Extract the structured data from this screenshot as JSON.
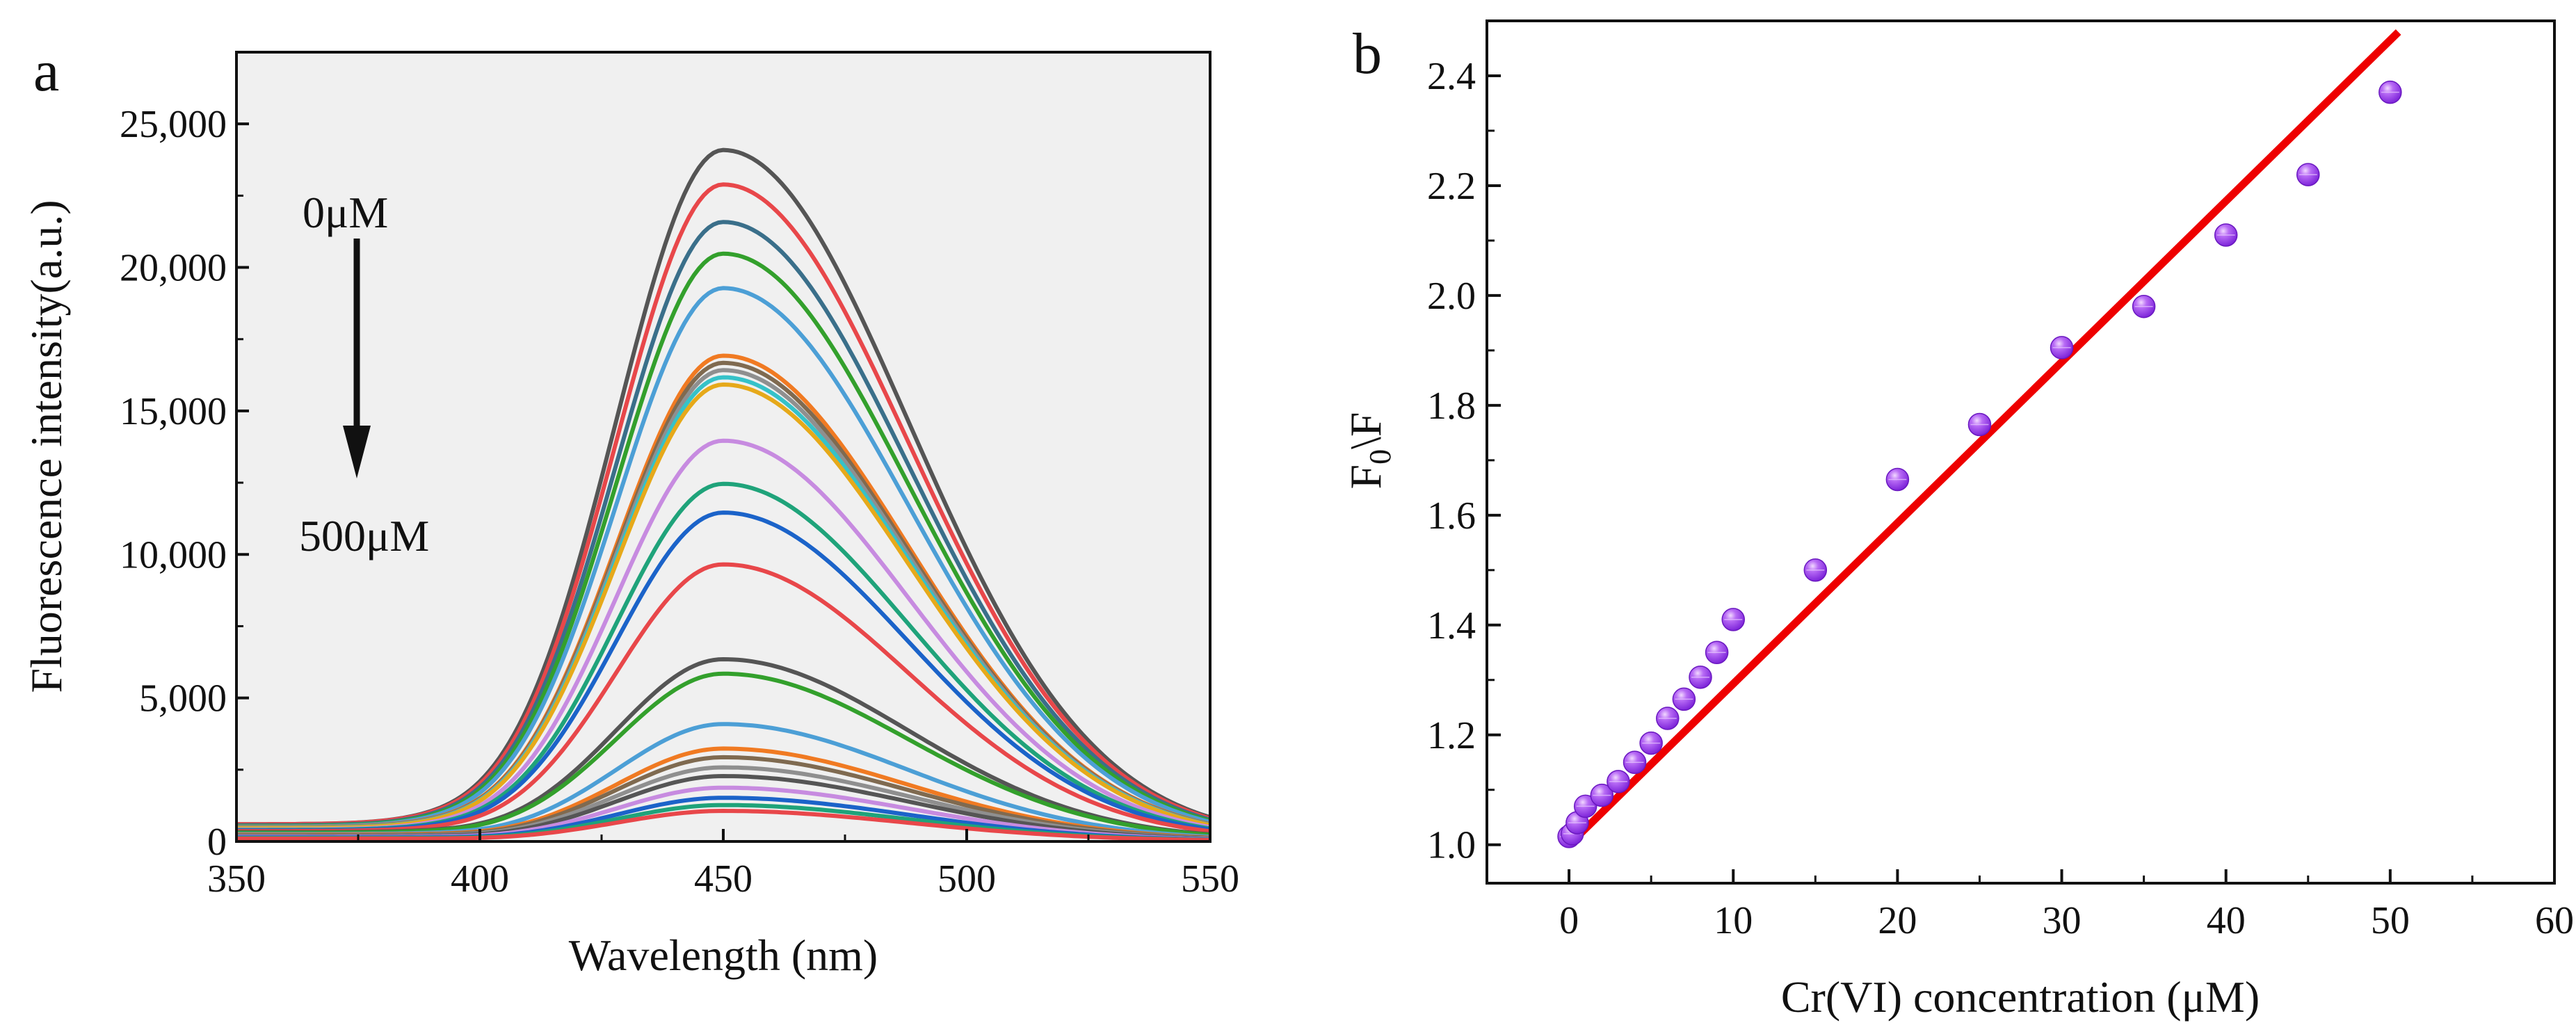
{
  "chart_data": [
    {
      "panel": "a",
      "type": "line",
      "title": "",
      "xlabel": "Wavelength (nm)",
      "ylabel": "Fluorescence intensity(a.u.)",
      "xlim": [
        350,
        550
      ],
      "ylim": [
        0,
        27500
      ],
      "x_ticks": [
        350,
        400,
        450,
        500,
        550
      ],
      "y_ticks": [
        0,
        5000,
        10000,
        15000,
        20000,
        25000
      ],
      "y_tick_labels": [
        "0",
        "5,000",
        "10,000",
        "15,000",
        "20,000",
        "25,000"
      ],
      "grid": false,
      "background": "#f0f0f0",
      "annotations": {
        "top": "0μM",
        "bottom": "500μM",
        "arrow": "down"
      },
      "spectrum_model": {
        "peak_nm": 450,
        "sigma_left_nm": 22,
        "sigma_right_nm": 38,
        "onset_nm": 397,
        "onset_width_nm": 6
      },
      "series": [
        {
          "name": "0μM",
          "peak": 24000,
          "baseline": 600,
          "color": "#555555"
        },
        {
          "name": "s2",
          "peak": 22800,
          "baseline": 600,
          "color": "#e8474a"
        },
        {
          "name": "s3",
          "peak": 21500,
          "baseline": 560,
          "color": "#3a6f8a"
        },
        {
          "name": "s4",
          "peak": 20400,
          "baseline": 540,
          "color": "#33a02c"
        },
        {
          "name": "s5",
          "peak": 19200,
          "baseline": 520,
          "color": "#4c9fd6"
        },
        {
          "name": "s6",
          "peak": 16850,
          "baseline": 500,
          "color": "#f07a22"
        },
        {
          "name": "s7",
          "peak": 16600,
          "baseline": 490,
          "color": "#7f6a50"
        },
        {
          "name": "s8",
          "peak": 16350,
          "baseline": 480,
          "color": "#8f8f8f"
        },
        {
          "name": "s9",
          "peak": 16100,
          "baseline": 470,
          "color": "#35c2c9"
        },
        {
          "name": "s10",
          "peak": 15850,
          "baseline": 460,
          "color": "#e6a91a"
        },
        {
          "name": "s11",
          "peak": 13900,
          "baseline": 420,
          "color": "#c78be0"
        },
        {
          "name": "s12",
          "peak": 12400,
          "baseline": 400,
          "color": "#1fa37a"
        },
        {
          "name": "s13",
          "peak": 11400,
          "baseline": 380,
          "color": "#1b63c9"
        },
        {
          "name": "s14",
          "peak": 9600,
          "baseline": 360,
          "color": "#e8474a"
        },
        {
          "name": "s15",
          "peak": 6300,
          "baseline": 320,
          "color": "#555555"
        },
        {
          "name": "s16",
          "peak": 5800,
          "baseline": 300,
          "color": "#33a02c"
        },
        {
          "name": "s17",
          "peak": 4050,
          "baseline": 260,
          "color": "#4c9fd6"
        },
        {
          "name": "s18",
          "peak": 3200,
          "baseline": 240,
          "color": "#f07a22"
        },
        {
          "name": "s19",
          "peak": 2900,
          "baseline": 220,
          "color": "#7f6a50"
        },
        {
          "name": "s20",
          "peak": 2550,
          "baseline": 200,
          "color": "#8f8f8f"
        },
        {
          "name": "s21",
          "peak": 2250,
          "baseline": 180,
          "color": "#555555"
        },
        {
          "name": "s22",
          "peak": 1850,
          "baseline": 160,
          "color": "#c78be0"
        },
        {
          "name": "s23",
          "peak": 1500,
          "baseline": 140,
          "color": "#1b63c9"
        },
        {
          "name": "s24",
          "peak": 1250,
          "baseline": 120,
          "color": "#1fa37a"
        },
        {
          "name": "500μM",
          "peak": 1050,
          "baseline": 100,
          "color": "#e8474a"
        }
      ]
    },
    {
      "panel": "b",
      "type": "scatter",
      "title": "",
      "xlabel": "Cr(VI) concentration (μM)",
      "ylabel": "F0\\F",
      "ylabel_base": "F",
      "ylabel_sub": "0",
      "ylabel_tail": "\\F",
      "xlim": [
        -5,
        60
      ],
      "ylim": [
        0.93,
        2.5
      ],
      "x_ticks": [
        0,
        10,
        20,
        30,
        40,
        50,
        60
      ],
      "y_ticks": [
        1.0,
        1.2,
        1.4,
        1.6,
        1.8,
        2.0,
        2.2,
        2.4
      ],
      "y_tick_labels": [
        "1.0",
        "1.2",
        "1.4",
        "1.6",
        "1.8",
        "2.0",
        "2.2",
        "2.4"
      ],
      "grid": false,
      "point_color": "#9b30f0",
      "fit": {
        "slope": 0.0293,
        "intercept": 1.0,
        "x_range": [
          0,
          50.5
        ],
        "color": "#ee0000"
      },
      "points": {
        "x": [
          0,
          0.2,
          0.5,
          1,
          2,
          3,
          4,
          5,
          6,
          7,
          8,
          9,
          10,
          15,
          20,
          25,
          30,
          35,
          40,
          45,
          50
        ],
        "y": [
          1.015,
          1.02,
          1.04,
          1.07,
          1.09,
          1.115,
          1.15,
          1.185,
          1.23,
          1.265,
          1.305,
          1.35,
          1.41,
          1.5,
          1.665,
          1.765,
          1.905,
          1.98,
          2.11,
          2.22,
          2.37
        ]
      }
    }
  ]
}
